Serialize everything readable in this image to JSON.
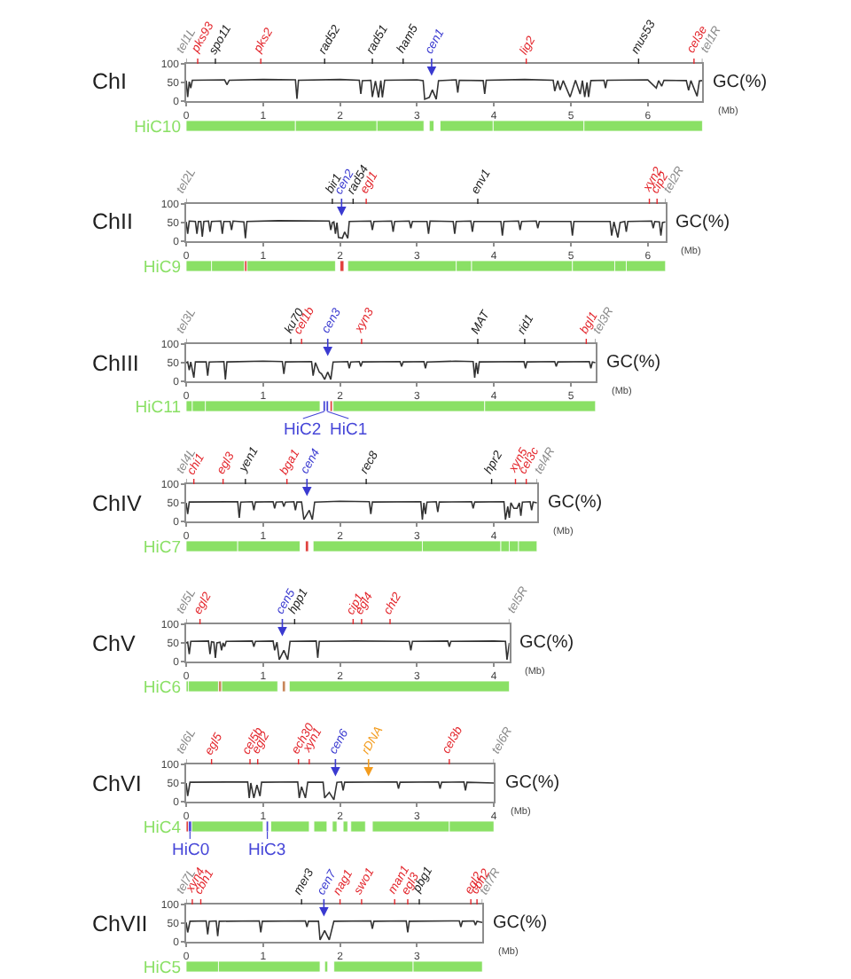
{
  "chart_data": [
    {
      "type": "line",
      "title": "ChI",
      "ylabel": "GC(%)",
      "xlabel": "(Mb)",
      "color": "#333333",
      "xlim": [
        0,
        6.71
      ],
      "xticks": [
        0,
        1,
        2,
        3,
        4,
        5,
        6
      ],
      "ylim": [
        0,
        100
      ],
      "yticks": [
        0,
        50,
        100
      ],
      "x": [
        0,
        0.02,
        0.04,
        0.06,
        0.08,
        0.5,
        0.53,
        0.56,
        1.0,
        1.42,
        1.44,
        1.46,
        2.0,
        2.25,
        2.27,
        2.29,
        2.4,
        2.42,
        2.46,
        2.5,
        2.53,
        2.55,
        2.58,
        3.0,
        3.08,
        3.1,
        3.16,
        3.2,
        3.25,
        3.28,
        3.51,
        3.53,
        3.55,
        3.86,
        3.88,
        3.9,
        4.4,
        4.77,
        4.79,
        4.83,
        4.86,
        4.9,
        4.99,
        5.06,
        5.12,
        5.15,
        5.18,
        5.21,
        5.23,
        5.26,
        5.43,
        5.45,
        5.47,
        6.0,
        6.11,
        6.14,
        6.18,
        6.21,
        6.5,
        6.53,
        6.56,
        6.64,
        6.67,
        6.71
      ],
      "values": [
        55,
        11,
        52,
        35,
        56,
        57,
        44,
        56,
        58,
        57,
        6,
        56,
        58,
        56,
        19,
        55,
        56,
        11,
        54,
        10,
        55,
        10,
        56,
        57,
        55,
        5,
        10,
        30,
        5,
        55,
        57,
        23,
        56,
        55,
        19,
        56,
        58,
        56,
        27,
        55,
        30,
        55,
        11,
        56,
        19,
        55,
        11,
        50,
        11,
        55,
        56,
        35,
        56,
        57,
        35,
        55,
        40,
        56,
        55,
        29,
        55,
        13,
        54,
        55
      ],
      "ref_lines": [
        {
          "axis": "x",
          "value": 0,
          "label": "tel1L",
          "color": "#8c8c8c"
        },
        {
          "axis": "x",
          "value": 0.15,
          "label": "pks93",
          "color": "#e3262c"
        },
        {
          "axis": "x",
          "value": 0.38,
          "label": "spo11",
          "color": "#222222"
        },
        {
          "axis": "x",
          "value": 0.97,
          "label": "pks2",
          "color": "#e3262c"
        },
        {
          "axis": "x",
          "value": 1.8,
          "label": "rad52",
          "color": "#222222"
        },
        {
          "axis": "x",
          "value": 2.42,
          "label": "rad51",
          "color": "#222222"
        },
        {
          "axis": "x",
          "value": 2.82,
          "label": "ham5",
          "color": "#222222"
        },
        {
          "axis": "x",
          "value": 3.19,
          "label": "cen1",
          "color": "#3a3ad0",
          "line_style": "solid"
        },
        {
          "axis": "x",
          "value": 4.42,
          "label": "lig2",
          "color": "#e3262c"
        },
        {
          "axis": "x",
          "value": 5.88,
          "label": "mus53",
          "color": "#222222"
        },
        {
          "axis": "x",
          "value": 6.6,
          "label": "cel3e",
          "color": "#e3262c"
        },
        {
          "axis": "x",
          "value": 6.71,
          "label": "tel1R",
          "color": "#8c8c8c"
        }
      ]
    },
    {
      "type": "bar",
      "orientation": "horizontal",
      "categories": [
        "HiC10"
      ],
      "xlim": [
        0,
        6.71
      ],
      "tick_labels": "y",
      "series": [
        {
          "color": "#8ae065",
          "values": [
            1.42
          ],
          "base": [
            0
          ]
        },
        {
          "color": "#8ae065",
          "values": [
            1.06
          ],
          "base": [
            1.42
          ]
        },
        {
          "color": "#8ae065",
          "values": [
            0.61
          ],
          "base": [
            2.48
          ]
        },
        {
          "color": "#8ae065",
          "values": [
            0.06
          ],
          "base": [
            3.16
          ]
        },
        {
          "color": "#8ae065",
          "values": [
            0.69
          ],
          "base": [
            3.3
          ]
        },
        {
          "color": "#8ae065",
          "values": [
            1.18
          ],
          "base": [
            3.99
          ]
        },
        {
          "color": "#8ae065",
          "values": [
            1.54
          ],
          "base": [
            5.17
          ]
        }
      ]
    },
    {
      "type": "line",
      "title": "ChII",
      "ylabel": "GC(%)",
      "xlabel": "(Mb)",
      "color": "#333333",
      "xlim": [
        0,
        6.23
      ],
      "xticks": [
        0,
        1,
        2,
        3,
        4,
        5,
        6
      ],
      "ylim": [
        0,
        100
      ],
      "yticks": [
        0,
        50,
        100
      ],
      "x": [
        0,
        0.02,
        0.04,
        0.12,
        0.14,
        0.16,
        0.19,
        0.21,
        0.23,
        0.29,
        0.31,
        0.33,
        0.45,
        0.47,
        0.49,
        0.57,
        0.59,
        0.61,
        0.75,
        0.77,
        0.79,
        1.2,
        1.86,
        1.88,
        1.9,
        1.92,
        1.94,
        1.96,
        1.98,
        2.03,
        2.06,
        2.1,
        2.12,
        2.4,
        2.42,
        2.44,
        2.67,
        2.69,
        2.71,
        2.9,
        2.92,
        2.94,
        3.13,
        3.15,
        3.17,
        3.47,
        3.49,
        3.51,
        3.7,
        3.72,
        3.74,
        4.09,
        4.11,
        4.13,
        4.32,
        4.34,
        4.36,
        4.55,
        4.57,
        4.59,
        5.0,
        5.02,
        5.04,
        5.51,
        5.53,
        5.56,
        5.61,
        5.64,
        5.7,
        5.72,
        5.74,
        6.05,
        6.07,
        6.09,
        6.15,
        6.17,
        6.19,
        6.23
      ],
      "values": [
        52,
        20,
        54,
        53,
        20,
        53,
        53,
        12,
        53,
        54,
        25,
        53,
        54,
        20,
        53,
        53,
        30,
        54,
        52,
        8,
        53,
        55,
        54,
        30,
        50,
        52,
        20,
        50,
        10,
        8,
        25,
        8,
        53,
        54,
        30,
        53,
        54,
        25,
        53,
        54,
        35,
        53,
        53,
        20,
        54,
        53,
        20,
        53,
        54,
        25,
        53,
        53,
        15,
        53,
        54,
        30,
        53,
        54,
        35,
        53,
        53,
        15,
        53,
        53,
        15,
        52,
        10,
        50,
        53,
        25,
        53,
        54,
        35,
        53,
        52,
        15,
        50,
        52
      ],
      "ref_lines": [
        {
          "axis": "x",
          "value": 0,
          "label": "tel2L",
          "color": "#8c8c8c"
        },
        {
          "axis": "x",
          "value": 1.9,
          "label": "bir1",
          "color": "#222222"
        },
        {
          "axis": "x",
          "value": 2.02,
          "label": "cen2",
          "color": "#3a3ad0",
          "line_style": "solid"
        },
        {
          "axis": "x",
          "value": 2.17,
          "label": "rad54",
          "color": "#222222"
        },
        {
          "axis": "x",
          "value": 2.34,
          "label": "egl1",
          "color": "#e3262c"
        },
        {
          "axis": "x",
          "value": 3.79,
          "label": "env1",
          "color": "#222222"
        },
        {
          "axis": "x",
          "value": 6.02,
          "label": "xyn2",
          "color": "#e3262c"
        },
        {
          "axis": "x",
          "value": 6.12,
          "label": "cip2",
          "color": "#e3262c"
        },
        {
          "axis": "x",
          "value": 6.23,
          "label": "tel2R",
          "color": "#8c8c8c"
        }
      ]
    },
    {
      "type": "bar",
      "orientation": "horizontal",
      "categories": [
        "HiC9"
      ],
      "xlim": [
        0,
        6.23
      ],
      "tick_labels": "y",
      "series": [
        {
          "color": "#8ae065",
          "values": [
            0.33
          ],
          "base": [
            0
          ]
        },
        {
          "color": "#8ae065",
          "values": [
            0.43
          ],
          "base": [
            0.33
          ]
        },
        {
          "color": "#8ae065",
          "values": [
            1.15
          ],
          "base": [
            0.79
          ]
        },
        {
          "color": "#8ae065",
          "values": [
            1.41
          ],
          "base": [
            2.1
          ]
        },
        {
          "color": "#8ae065",
          "values": [
            0.2
          ],
          "base": [
            3.51
          ]
        },
        {
          "color": "#8ae065",
          "values": [
            1.31
          ],
          "base": [
            3.71
          ]
        },
        {
          "color": "#8ae065",
          "values": [
            0.55
          ],
          "base": [
            5.02
          ]
        },
        {
          "color": "#8ae065",
          "values": [
            0.15
          ],
          "base": [
            5.57
          ]
        },
        {
          "color": "#8ae065",
          "values": [
            0.51
          ],
          "base": [
            5.72
          ]
        },
        {
          "color": "#e0403c",
          "values": [
            0.03
          ],
          "base": [
            0.76
          ]
        },
        {
          "color": "#e0403c",
          "values": [
            0.05
          ],
          "base": [
            2.0
          ]
        }
      ]
    },
    {
      "type": "line",
      "title": "ChIII",
      "ylabel": "GC(%)",
      "xlabel": "(Mb)",
      "color": "#333333",
      "xlim": [
        0,
        5.32
      ],
      "xticks": [
        0,
        1,
        2,
        3,
        4,
        5
      ],
      "ylim": [
        0,
        100
      ],
      "yticks": [
        0,
        50,
        100
      ],
      "x": [
        0,
        0.02,
        0.04,
        0.06,
        0.1,
        0.12,
        0.26,
        0.28,
        0.3,
        0.49,
        0.51,
        0.53,
        1.0,
        1.25,
        1.27,
        1.29,
        1.63,
        1.65,
        1.68,
        1.73,
        1.76,
        1.8,
        1.84,
        1.88,
        1.91,
        2.1,
        2.12,
        2.14,
        2.25,
        2.27,
        2.29,
        2.78,
        2.8,
        2.82,
        3.09,
        3.11,
        3.13,
        3.5,
        3.73,
        3.75,
        3.77,
        3.79,
        3.81,
        4.39,
        4.41,
        4.43,
        4.79,
        4.81,
        4.83,
        5.24,
        5.26,
        5.28,
        5.32
      ],
      "values": [
        50,
        52,
        30,
        52,
        10,
        52,
        52,
        15,
        52,
        53,
        5,
        52,
        54,
        53,
        20,
        52,
        53,
        15,
        50,
        25,
        20,
        5,
        25,
        5,
        52,
        53,
        35,
        52,
        53,
        40,
        52,
        53,
        40,
        52,
        53,
        35,
        52,
        54,
        53,
        10,
        50,
        20,
        52,
        53,
        35,
        52,
        53,
        40,
        52,
        53,
        35,
        52,
        50
      ],
      "ref_lines": [
        {
          "axis": "x",
          "value": 0,
          "label": "tel3L",
          "color": "#8c8c8c"
        },
        {
          "axis": "x",
          "value": 1.36,
          "label": "ku70",
          "color": "#222222"
        },
        {
          "axis": "x",
          "value": 1.5,
          "label": "cel1b",
          "color": "#e3262c"
        },
        {
          "axis": "x",
          "value": 1.84,
          "label": "cen3",
          "color": "#3a3ad0",
          "line_style": "solid"
        },
        {
          "axis": "x",
          "value": 2.28,
          "label": "xyn3",
          "color": "#e3262c"
        },
        {
          "axis": "x",
          "value": 3.79,
          "label": "MAT",
          "color": "#222222"
        },
        {
          "axis": "x",
          "value": 4.4,
          "label": "rid1",
          "color": "#222222"
        },
        {
          "axis": "x",
          "value": 5.2,
          "label": "bgl1",
          "color": "#e3262c"
        },
        {
          "axis": "x",
          "value": 5.32,
          "label": "tel3R",
          "color": "#8c8c8c"
        }
      ]
    },
    {
      "type": "bar",
      "orientation": "horizontal",
      "categories": [
        "HiC11"
      ],
      "xlim": [
        0,
        5.32
      ],
      "tick_labels": "y",
      "legend": "bottom",
      "series": [
        {
          "color": "#8ae065",
          "values": [
            0.08
          ],
          "base": [
            0
          ]
        },
        {
          "color": "#8ae065",
          "values": [
            0.17
          ],
          "base": [
            0.08
          ]
        },
        {
          "color": "#8ae065",
          "values": [
            1.49
          ],
          "base": [
            0.25
          ]
        },
        {
          "color": "#8ae065",
          "values": [
            1.97
          ],
          "base": [
            1.91
          ]
        },
        {
          "color": "#8ae065",
          "values": [
            1.44
          ],
          "base": [
            3.88
          ]
        },
        {
          "name": "HiC2",
          "color": "#4646d8",
          "values": [
            0.03
          ],
          "base": [
            1.78
          ]
        },
        {
          "name": "HiC1",
          "color": "#4646d8",
          "values": [
            0.03
          ],
          "base": [
            1.82
          ]
        },
        {
          "color": "#e0403c",
          "values": [
            0.03
          ],
          "base": [
            1.87
          ]
        }
      ]
    },
    {
      "type": "line",
      "title": "ChIV",
      "ylabel": "GC(%)",
      "xlabel": "(Mb)",
      "color": "#333333",
      "xlim": [
        0,
        4.56
      ],
      "xticks": [
        0,
        1,
        2,
        3,
        4
      ],
      "ylim": [
        0,
        100
      ],
      "yticks": [
        0,
        50,
        100
      ],
      "x": [
        0,
        0.02,
        0.04,
        0.67,
        0.69,
        0.71,
        0.86,
        0.88,
        0.9,
        1.13,
        1.15,
        1.17,
        1.25,
        1.27,
        1.29,
        1.4,
        1.42,
        1.44,
        1.5,
        1.53,
        1.6,
        1.64,
        1.67,
        2.0,
        2.38,
        2.4,
        2.42,
        3.05,
        3.07,
        3.09,
        3.11,
        3.13,
        3.25,
        3.27,
        3.29,
        3.71,
        3.73,
        3.75,
        4.13,
        4.15,
        4.18,
        4.2,
        4.22,
        4.26,
        4.3,
        4.33,
        4.35,
        4.37,
        4.47,
        4.49,
        4.51,
        4.56
      ],
      "values": [
        50,
        20,
        52,
        53,
        10,
        52,
        53,
        30,
        52,
        53,
        35,
        52,
        53,
        40,
        52,
        53,
        30,
        52,
        52,
        5,
        30,
        5,
        52,
        54,
        53,
        20,
        52,
        53,
        5,
        50,
        20,
        52,
        53,
        25,
        52,
        53,
        35,
        52,
        53,
        5,
        40,
        10,
        50,
        35,
        35,
        50,
        15,
        52,
        53,
        30,
        52,
        50
      ],
      "ref_lines": [
        {
          "axis": "x",
          "value": 0,
          "label": "tel4L",
          "color": "#8c8c8c"
        },
        {
          "axis": "x",
          "value": 0.1,
          "label": "chi1",
          "color": "#e3262c"
        },
        {
          "axis": "x",
          "value": 0.48,
          "label": "egl3",
          "color": "#e3262c"
        },
        {
          "axis": "x",
          "value": 0.77,
          "label": "yen1",
          "color": "#222222"
        },
        {
          "axis": "x",
          "value": 1.31,
          "label": "bga1",
          "color": "#e3262c"
        },
        {
          "axis": "x",
          "value": 1.57,
          "label": "cen4",
          "color": "#3a3ad0",
          "line_style": "solid"
        },
        {
          "axis": "x",
          "value": 2.34,
          "label": "rec8",
          "color": "#222222"
        },
        {
          "axis": "x",
          "value": 3.97,
          "label": "hpr2",
          "color": "#222222"
        },
        {
          "axis": "x",
          "value": 4.28,
          "label": "xyn5",
          "color": "#e3262c"
        },
        {
          "axis": "x",
          "value": 4.42,
          "label": "cel3c",
          "color": "#e3262c"
        },
        {
          "axis": "x",
          "value": 4.56,
          "label": "tel4R",
          "color": "#8c8c8c"
        }
      ]
    },
    {
      "type": "bar",
      "orientation": "horizontal",
      "categories": [
        "HiC7"
      ],
      "xlim": [
        0,
        4.56
      ],
      "tick_labels": "y",
      "series": [
        {
          "color": "#8ae065",
          "values": [
            0.67
          ],
          "base": [
            0
          ]
        },
        {
          "color": "#8ae065",
          "values": [
            0.81
          ],
          "base": [
            0.67
          ]
        },
        {
          "color": "#8ae065",
          "values": [
            1.42
          ],
          "base": [
            1.65
          ]
        },
        {
          "color": "#8ae065",
          "values": [
            1.02
          ],
          "base": [
            3.07
          ]
        },
        {
          "color": "#8ae065",
          "values": [
            0.11
          ],
          "base": [
            4.09
          ]
        },
        {
          "color": "#8ae065",
          "values": [
            0.12
          ],
          "base": [
            4.2
          ]
        },
        {
          "color": "#8ae065",
          "values": [
            0.24
          ],
          "base": [
            4.32
          ]
        },
        {
          "color": "#e0403c",
          "values": [
            0.04
          ],
          "base": [
            1.55
          ]
        }
      ]
    },
    {
      "type": "line",
      "title": "ChV",
      "ylabel": "GC(%)",
      "xlabel": "(Mb)",
      "color": "#333333",
      "xlim": [
        0,
        4.2
      ],
      "xticks": [
        0,
        1,
        2,
        3,
        4
      ],
      "ylim": [
        0,
        100
      ],
      "yticks": [
        0,
        50,
        100
      ],
      "x": [
        0,
        0.02,
        0.04,
        0.06,
        0.29,
        0.31,
        0.33,
        0.36,
        0.38,
        0.4,
        0.44,
        0.46,
        0.48,
        0.5,
        0.52,
        0.86,
        0.88,
        0.9,
        1.13,
        1.15,
        1.18,
        1.21,
        1.27,
        1.32,
        1.35,
        1.69,
        1.71,
        1.73,
        2.2,
        2.9,
        2.92,
        2.94,
        3.4,
        3.42,
        3.44,
        4.0,
        4.15,
        4.17,
        4.2
      ],
      "values": [
        50,
        52,
        20,
        54,
        55,
        20,
        53,
        52,
        10,
        50,
        52,
        30,
        50,
        40,
        54,
        55,
        40,
        54,
        55,
        30,
        52,
        5,
        30,
        5,
        54,
        55,
        10,
        54,
        55,
        54,
        30,
        54,
        55,
        40,
        54,
        55,
        54,
        5,
        50
      ],
      "ref_lines": [
        {
          "axis": "x",
          "value": 0,
          "label": "tel5L",
          "color": "#8c8c8c"
        },
        {
          "axis": "x",
          "value": 0.18,
          "label": "egl2",
          "color": "#e3262c"
        },
        {
          "axis": "x",
          "value": 1.25,
          "label": "cen5",
          "color": "#3a3ad0",
          "line_style": "solid"
        },
        {
          "axis": "x",
          "value": 1.41,
          "label": "hpp1",
          "color": "#222222"
        },
        {
          "axis": "x",
          "value": 2.17,
          "label": "cip1",
          "color": "#e3262c"
        },
        {
          "axis": "x",
          "value": 2.28,
          "label": "egl4",
          "color": "#e3262c"
        },
        {
          "axis": "x",
          "value": 2.65,
          "label": "cht2",
          "color": "#e3262c"
        },
        {
          "axis": "x",
          "value": 4.2,
          "label": "tel5R",
          "color": "#8c8c8c"
        }
      ]
    },
    {
      "type": "bar",
      "orientation": "horizontal",
      "categories": [
        "HiC6"
      ],
      "xlim": [
        0,
        4.2
      ],
      "tick_labels": "y",
      "series": [
        {
          "color": "#8ae065",
          "values": [
            0.03
          ],
          "base": [
            0
          ]
        },
        {
          "color": "#8ae065",
          "values": [
            0.39
          ],
          "base": [
            0.03
          ]
        },
        {
          "color": "#8ae065",
          "values": [
            0.73
          ],
          "base": [
            0.46
          ]
        },
        {
          "color": "#8ae065",
          "values": [
            2.86
          ],
          "base": [
            1.34
          ]
        },
        {
          "color": "#c8865a",
          "values": [
            0.04
          ],
          "base": [
            0.42
          ]
        },
        {
          "color": "#c8865a",
          "values": [
            0.04
          ],
          "base": [
            1.25
          ]
        }
      ]
    },
    {
      "type": "line",
      "title": "ChVI",
      "ylabel": "GC(%)",
      "xlabel": "(Mb)",
      "color": "#333333",
      "xlim": [
        0,
        4
      ],
      "xticks": [
        0,
        1,
        2,
        3,
        4
      ],
      "ylim": [
        0,
        100
      ],
      "yticks": [
        0,
        50,
        100
      ],
      "x": [
        0,
        0.02,
        0.05,
        0.8,
        0.82,
        0.84,
        0.88,
        0.92,
        0.96,
        0.98,
        1.45,
        1.47,
        1.5,
        1.55,
        1.58,
        1.78,
        1.8,
        1.86,
        1.92,
        1.96,
        2.02,
        2.04,
        2.06,
        2.74,
        2.76,
        2.78,
        3.28,
        3.3,
        3.32,
        3.61,
        3.63,
        3.65,
        4.0
      ],
      "values": [
        50,
        15,
        52,
        53,
        10,
        50,
        10,
        45,
        15,
        52,
        53,
        10,
        40,
        10,
        52,
        52,
        10,
        25,
        5,
        52,
        53,
        30,
        52,
        53,
        35,
        52,
        53,
        35,
        52,
        53,
        30,
        52,
        50
      ],
      "ref_lines": [
        {
          "axis": "x",
          "value": 0,
          "label": "tel6L",
          "color": "#8c8c8c"
        },
        {
          "axis": "x",
          "value": 0.33,
          "label": "egl5",
          "color": "#e3262c"
        },
        {
          "axis": "x",
          "value": 0.83,
          "label": "cel5b",
          "color": "#e3262c"
        },
        {
          "axis": "x",
          "value": 0.93,
          "label": "egl2",
          "color": "#e3262c"
        },
        {
          "axis": "x",
          "value": 1.46,
          "label": "ech30",
          "color": "#e3262c"
        },
        {
          "axis": "x",
          "value": 1.6,
          "label": "xyn1",
          "color": "#e3262c"
        },
        {
          "axis": "x",
          "value": 1.94,
          "label": "cen6",
          "color": "#3a3ad0",
          "line_style": "solid"
        },
        {
          "axis": "x",
          "value": 2.37,
          "label": "rDNA",
          "color": "#f39c1e",
          "line_style": "solid"
        },
        {
          "axis": "x",
          "value": 3.42,
          "label": "cel3b",
          "color": "#e3262c"
        },
        {
          "axis": "x",
          "value": 4,
          "label": "tel6R",
          "color": "#8c8c8c"
        }
      ]
    },
    {
      "type": "bar",
      "orientation": "horizontal",
      "categories": [
        "HiC4"
      ],
      "xlim": [
        0,
        4
      ],
      "tick_labels": "y",
      "legend": "bottom",
      "series": [
        {
          "color": "#8ae065",
          "values": [
            0.93
          ],
          "base": [
            0.07
          ]
        },
        {
          "color": "#8ae065",
          "values": [
            0.5
          ],
          "base": [
            1.1
          ]
        },
        {
          "color": "#8ae065",
          "values": [
            0.17
          ],
          "base": [
            1.66
          ]
        },
        {
          "color": "#8ae065",
          "values": [
            0.06
          ],
          "base": [
            1.9
          ]
        },
        {
          "color": "#8ae065",
          "values": [
            0.06
          ],
          "base": [
            2.04
          ]
        },
        {
          "color": "#8ae065",
          "values": [
            0.19
          ],
          "base": [
            2.14
          ]
        },
        {
          "color": "#8ae065",
          "values": [
            1.0
          ],
          "base": [
            2.42
          ]
        },
        {
          "color": "#8ae065",
          "values": [
            0.58
          ],
          "base": [
            3.42
          ]
        },
        {
          "color": "#e0403c",
          "values": [
            0.03
          ],
          "base": [
            0
          ]
        },
        {
          "name": "HiC0",
          "color": "#4646d8",
          "values": [
            0.04
          ],
          "base": [
            0.03
          ]
        },
        {
          "name": "HiC3",
          "color": "#4646d8",
          "values": [
            0.03
          ],
          "base": [
            1.04
          ]
        }
      ]
    },
    {
      "type": "line",
      "title": "ChVII",
      "ylabel": "GC(%)",
      "xlabel": "(Mb)",
      "color": "#333333",
      "xlim": [
        0,
        3.85
      ],
      "xticks": [
        0,
        1,
        2,
        3
      ],
      "ylim": [
        0,
        100
      ],
      "yticks": [
        0,
        50,
        100
      ],
      "x": [
        0,
        0.02,
        0.05,
        0.26,
        0.28,
        0.3,
        0.39,
        0.41,
        0.43,
        0.95,
        0.97,
        0.99,
        1.55,
        1.57,
        1.59,
        1.72,
        1.74,
        1.8,
        1.86,
        1.92,
        2.4,
        2.42,
        2.44,
        2.86,
        2.88,
        2.9,
        3.55,
        3.57,
        3.59,
        3.74,
        3.76,
        3.78,
        3.85
      ],
      "values": [
        52,
        25,
        55,
        56,
        20,
        55,
        56,
        15,
        55,
        56,
        25,
        55,
        56,
        40,
        55,
        55,
        5,
        30,
        5,
        55,
        56,
        35,
        55,
        56,
        25,
        55,
        56,
        40,
        55,
        56,
        45,
        55,
        52
      ],
      "ref_lines": [
        {
          "axis": "x",
          "value": 0,
          "label": "tel7L",
          "color": "#8c8c8c"
        },
        {
          "axis": "x",
          "value": 0.08,
          "label": "xyn4",
          "color": "#e3262c"
        },
        {
          "axis": "x",
          "value": 0.19,
          "label": "cbh1",
          "color": "#e3262c"
        },
        {
          "axis": "x",
          "value": 1.5,
          "label": "mer3",
          "color": "#222222"
        },
        {
          "axis": "x",
          "value": 1.79,
          "label": "cen7",
          "color": "#3a3ad0",
          "line_style": "solid"
        },
        {
          "axis": "x",
          "value": 2.0,
          "label": "nag1",
          "color": "#e3262c"
        },
        {
          "axis": "x",
          "value": 2.28,
          "label": "swo1",
          "color": "#e3262c"
        },
        {
          "axis": "x",
          "value": 2.71,
          "label": "man1",
          "color": "#e3262c"
        },
        {
          "axis": "x",
          "value": 2.88,
          "label": "egl3",
          "color": "#e3262c"
        },
        {
          "axis": "x",
          "value": 3.03,
          "label": "pbg1",
          "color": "#222222"
        },
        {
          "axis": "x",
          "value": 3.7,
          "label": "egl2",
          "color": "#e3262c"
        },
        {
          "axis": "x",
          "value": 3.78,
          "label": "cbh2",
          "color": "#e3262c"
        },
        {
          "axis": "x",
          "value": 3.85,
          "label": "tel7R",
          "color": "#8c8c8c"
        }
      ]
    },
    {
      "type": "bar",
      "orientation": "horizontal",
      "categories": [
        "HiC5"
      ],
      "xlim": [
        0,
        3.85
      ],
      "tick_labels": "y",
      "series": [
        {
          "color": "#8ae065",
          "values": [
            0.42
          ],
          "base": [
            0
          ]
        },
        {
          "color": "#8ae065",
          "values": [
            1.32
          ],
          "base": [
            0.42
          ]
        },
        {
          "color": "#8ae065",
          "values": [
            0.04
          ],
          "base": [
            1.8
          ]
        },
        {
          "color": "#8ae065",
          "values": [
            1.03
          ],
          "base": [
            1.92
          ]
        },
        {
          "color": "#8ae065",
          "values": [
            0.9
          ],
          "base": [
            2.95
          ]
        }
      ]
    }
  ]
}
